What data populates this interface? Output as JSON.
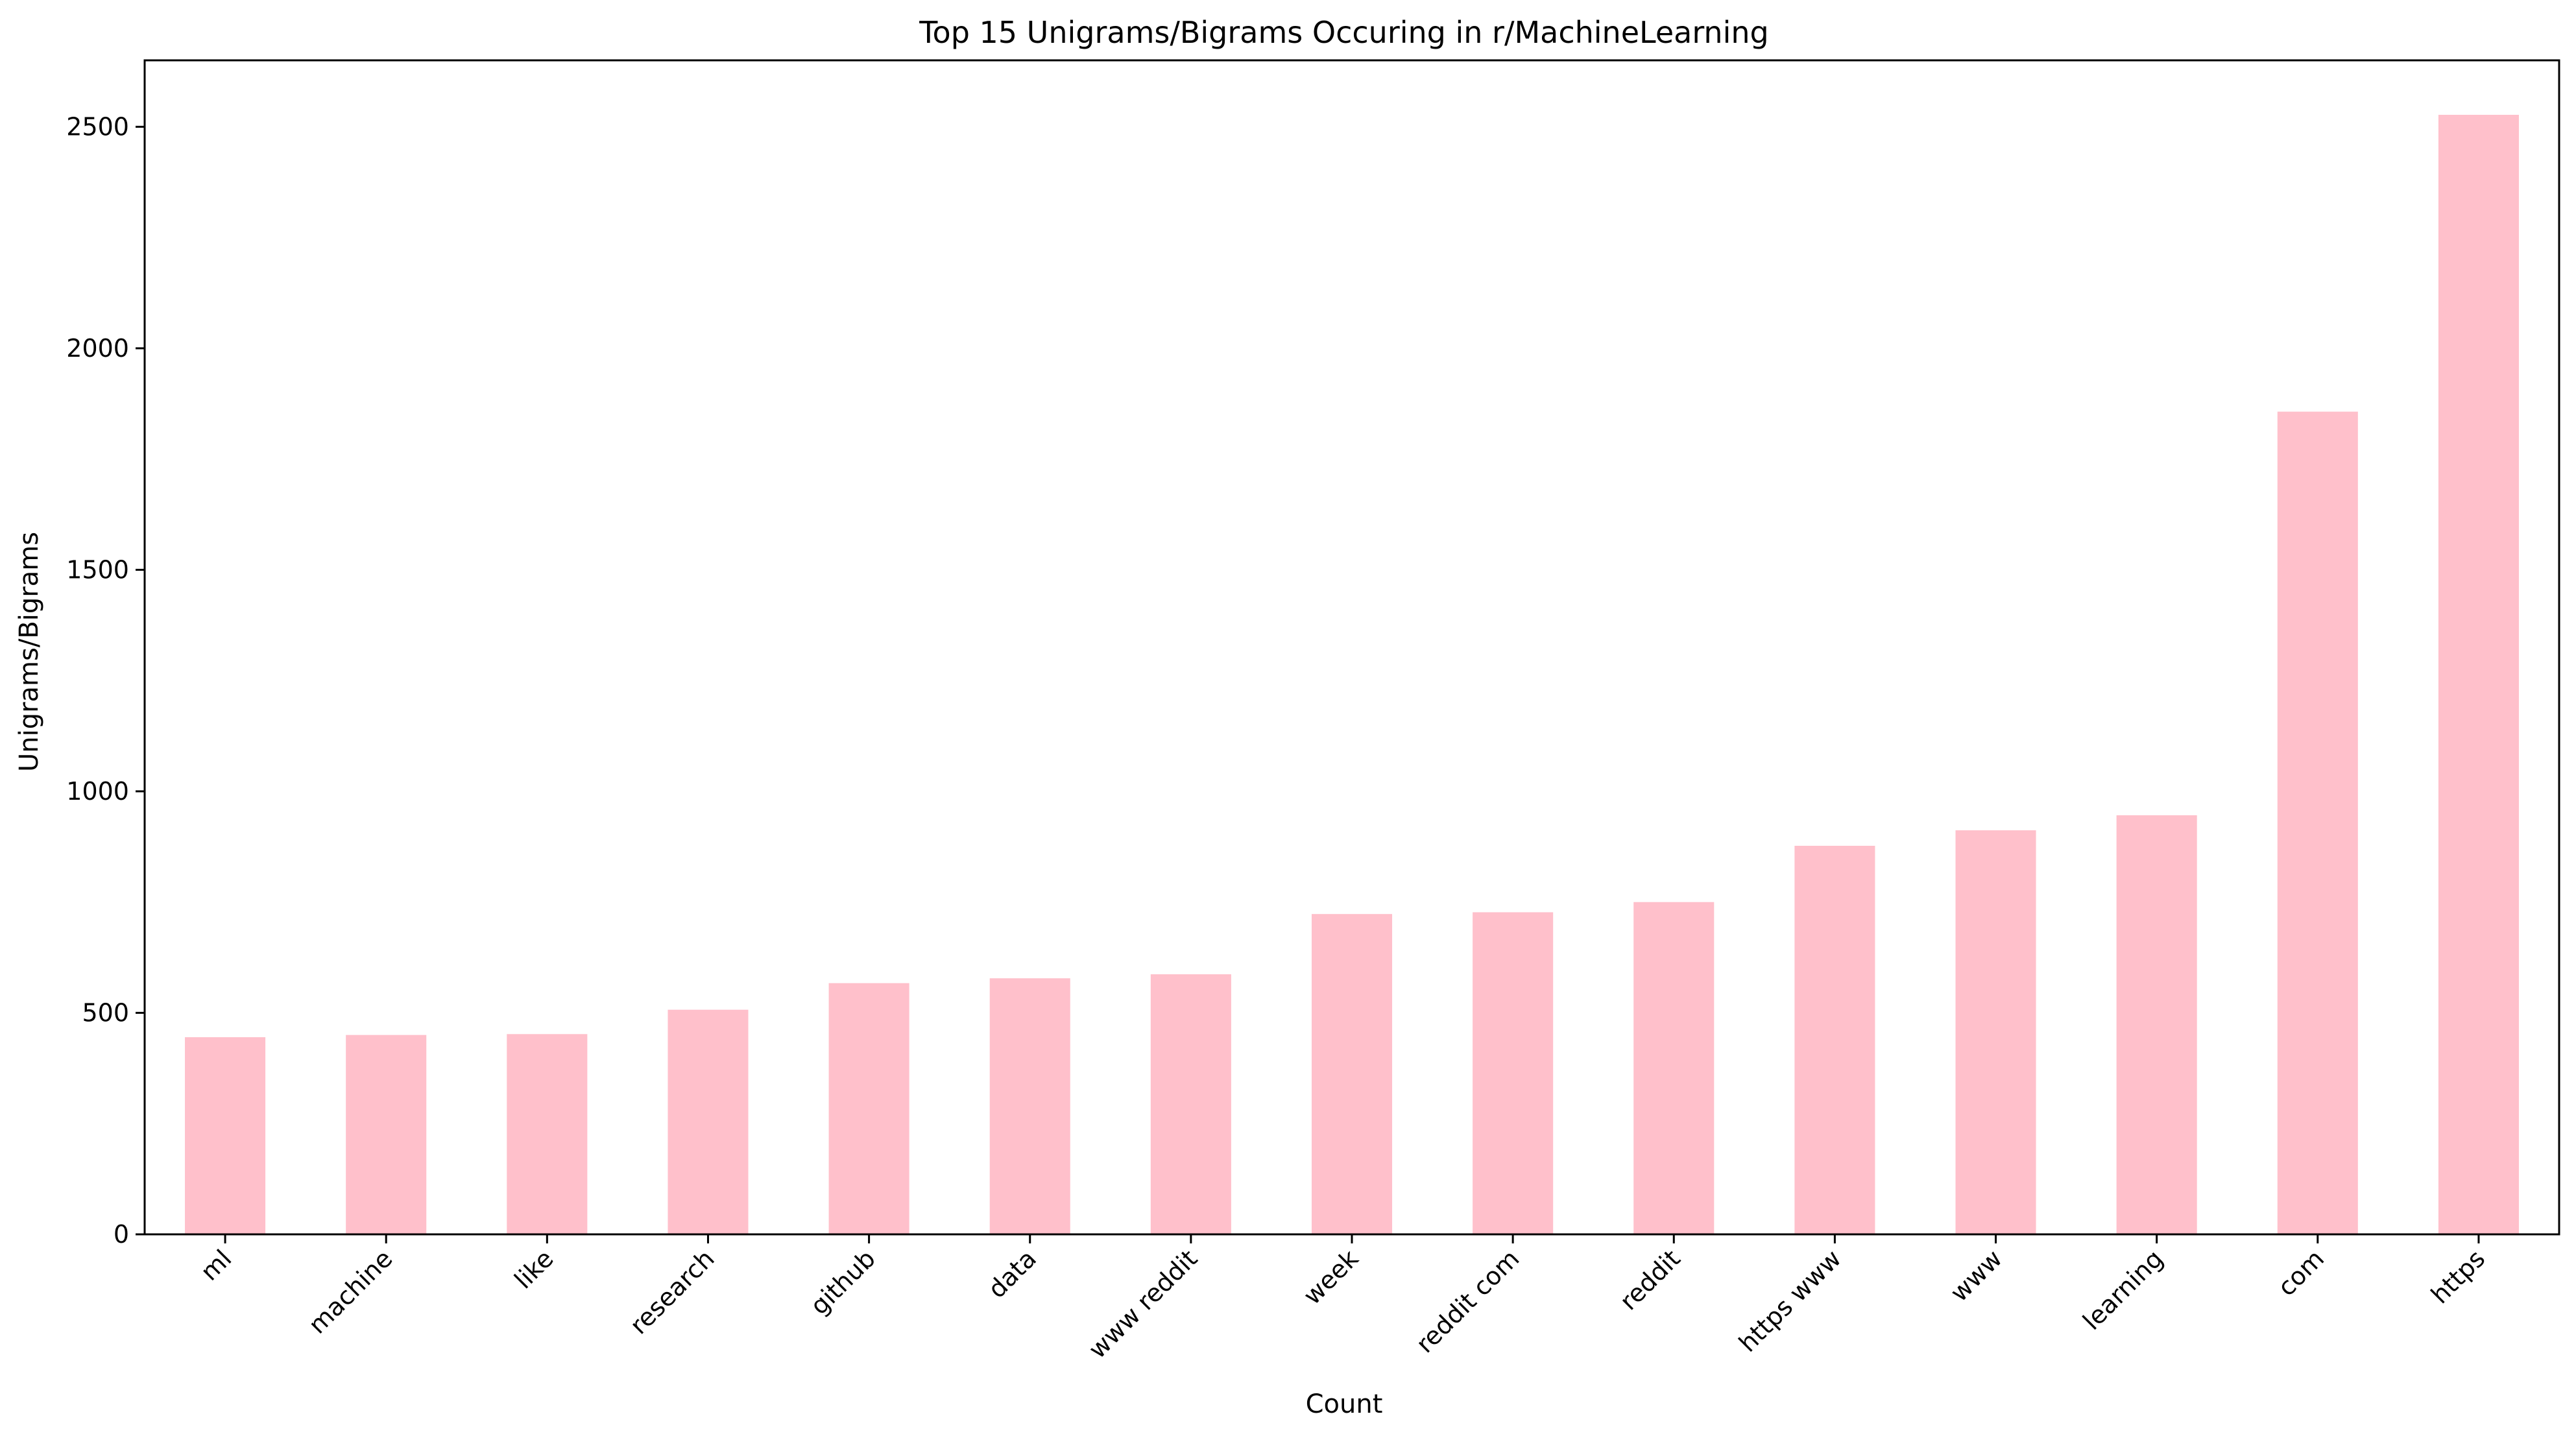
{
  "chart_data": {
    "type": "bar",
    "title": "Top 15 Unigrams/Bigrams Occuring in r/MachineLearning",
    "xlabel": "Count",
    "ylabel": "Unigrams/Bigrams",
    "categories": [
      "ml",
      "machine",
      "like",
      "research",
      "github",
      "data",
      "www reddit",
      "week",
      "reddit com",
      "reddit",
      "https www",
      "www",
      "learning",
      "com",
      "https"
    ],
    "values": [
      445,
      450,
      452,
      507,
      567,
      578,
      587,
      723,
      727,
      750,
      877,
      912,
      946,
      1857,
      2527
    ],
    "ylim": [
      0,
      2650
    ],
    "yticks": [
      0,
      500,
      1000,
      1500,
      2000,
      2500
    ],
    "xtick_rotation": 45,
    "grid": false,
    "legend": "none",
    "bar_color": "#ffc0cb"
  }
}
